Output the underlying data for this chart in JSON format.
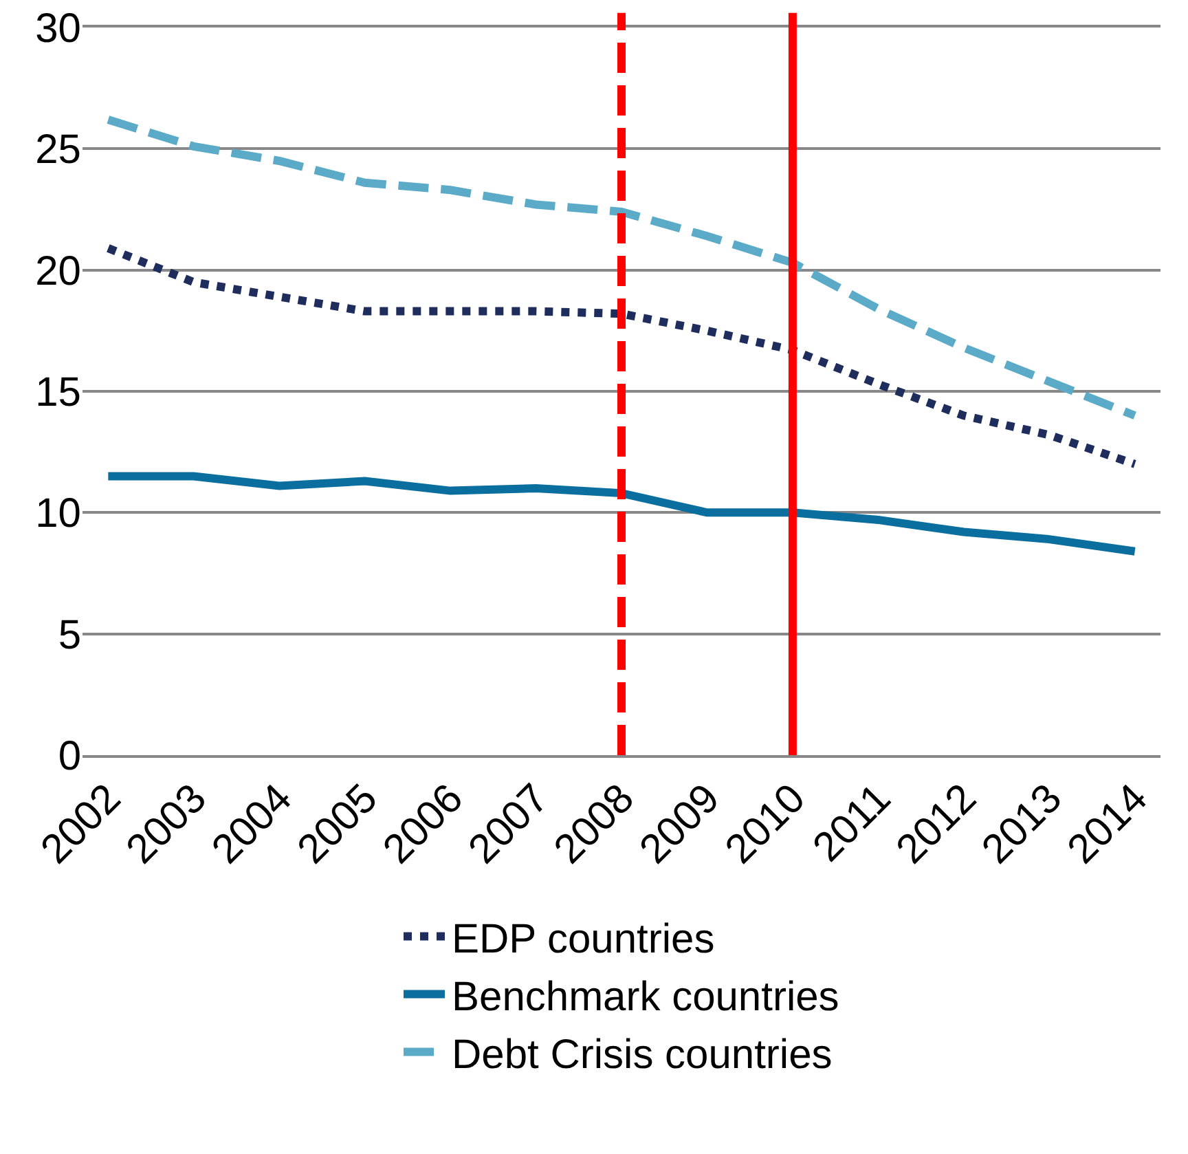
{
  "chart_data": {
    "type": "line",
    "categories": [
      "2002",
      "2003",
      "2004",
      "2005",
      "2006",
      "2007",
      "2008",
      "2009",
      "2010",
      "2011",
      "2012",
      "2013",
      "2014"
    ],
    "series": [
      {
        "name": "EDP countries",
        "color": "#1f2d5c",
        "line_style": "dotted",
        "values": [
          20.9,
          19.5,
          18.9,
          18.3,
          18.3,
          18.3,
          18.2,
          17.5,
          16.7,
          15.3,
          14.0,
          13.2,
          12.0
        ]
      },
      {
        "name": "Benchmark countries",
        "color": "#0a6e9e",
        "line_style": "solid",
        "values": [
          11.5,
          11.5,
          11.1,
          11.3,
          10.9,
          11.0,
          10.8,
          10.0,
          10.0,
          9.7,
          9.2,
          8.9,
          8.4
        ]
      },
      {
        "name": "Debt Crisis countries",
        "color": "#5aaac8",
        "line_style": "dashed",
        "values": [
          26.2,
          25.1,
          24.5,
          23.6,
          23.3,
          22.7,
          22.4,
          21.4,
          20.3,
          18.4,
          16.8,
          15.4,
          14.0
        ]
      }
    ],
    "ylim": [
      0,
      30
    ],
    "yticks": [
      0,
      5,
      10,
      15,
      20,
      25,
      30
    ],
    "grid": "y",
    "legend": "bottom",
    "marker": "none",
    "ref_lines": [
      {
        "axis": "x",
        "value": "2008",
        "color": "#ff0000",
        "line_style": "dashed"
      },
      {
        "axis": "x",
        "value": "2010",
        "color": "#ff0000",
        "line_style": "solid"
      }
    ]
  }
}
